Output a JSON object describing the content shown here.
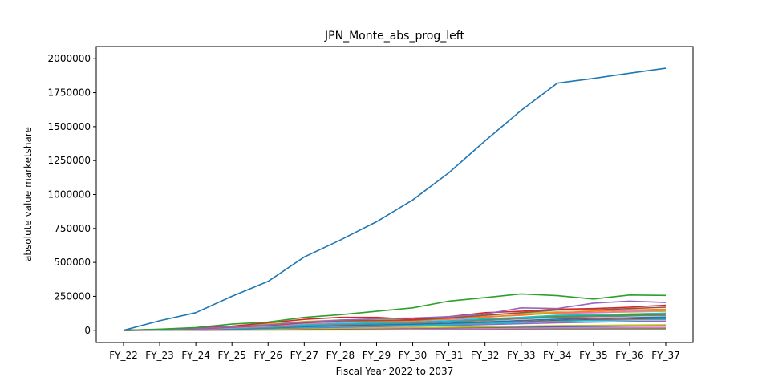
{
  "chart_data": {
    "type": "line",
    "title": "JPN_Monte_abs_prog_left",
    "xlabel": "Fiscal Year 2022 to 2037",
    "ylabel": "absolute value marketshare",
    "categories": [
      "FY_22",
      "FY_23",
      "FY_24",
      "FY_25",
      "FY_26",
      "FY_27",
      "FY_28",
      "FY_29",
      "FY_30",
      "FY_31",
      "FY_32",
      "FY_33",
      "FY_34",
      "FY_35",
      "FY_36",
      "FY_37"
    ],
    "ylim": [
      -90000,
      2090000
    ],
    "yticks": [
      0,
      250000,
      500000,
      750000,
      1000000,
      1250000,
      1500000,
      1750000,
      2000000
    ],
    "ytick_labels": [
      "0",
      "250000",
      "500000",
      "750000",
      "1000000",
      "1250000",
      "1500000",
      "1750000",
      "2000000"
    ],
    "grid": false,
    "series": [
      {
        "color": "#1f77b4",
        "values": [
          0,
          70000,
          130000,
          250000,
          360000,
          540000,
          665000,
          800000,
          960000,
          1160000,
          1395000,
          1620000,
          1820000,
          1855000,
          1893000,
          1930000
        ]
      },
      {
        "color": "#2ca02c",
        "values": [
          0,
          8000,
          20000,
          45000,
          60000,
          95000,
          115000,
          140000,
          165000,
          215000,
          240000,
          268000,
          255000,
          230000,
          260000,
          257000
        ]
      },
      {
        "color": "#9467bd",
        "values": [
          0,
          5000,
          12000,
          25000,
          40000,
          60000,
          75000,
          85000,
          90000,
          100000,
          120000,
          165000,
          160000,
          200000,
          215000,
          205000
        ]
      },
      {
        "color": "#d62728",
        "values": [
          0,
          6000,
          15000,
          30000,
          55000,
          80000,
          95000,
          95000,
          80000,
          100000,
          130000,
          140000,
          155000,
          160000,
          170000,
          185000
        ]
      },
      {
        "color": "#8c564b",
        "values": [
          0,
          4000,
          10000,
          22000,
          35000,
          55000,
          70000,
          72000,
          75000,
          90000,
          110000,
          130000,
          150000,
          150000,
          160000,
          170000
        ]
      },
      {
        "color": "#ff7f0e",
        "values": [
          0,
          5000,
          12000,
          24000,
          38000,
          60000,
          70000,
          68000,
          70000,
          85000,
          100000,
          110000,
          130000,
          140000,
          150000,
          155000
        ]
      },
      {
        "color": "#e377c2",
        "values": [
          0,
          3000,
          8000,
          18000,
          30000,
          48000,
          60000,
          65000,
          70000,
          80000,
          95000,
          115000,
          125000,
          130000,
          140000,
          148000
        ]
      },
      {
        "color": "#bcbd22",
        "values": [
          0,
          7000,
          18000,
          30000,
          45000,
          65000,
          75000,
          75000,
          80000,
          95000,
          110000,
          125000,
          135000,
          130000,
          135000,
          140000
        ]
      },
      {
        "color": "#17becf",
        "values": [
          0,
          3000,
          8000,
          15000,
          25000,
          40000,
          50000,
          55000,
          60000,
          70000,
          85000,
          95000,
          110000,
          115000,
          120000,
          125000
        ]
      },
      {
        "color": "#7f7f7f",
        "values": [
          0,
          2500,
          6000,
          12000,
          20000,
          32000,
          42000,
          48000,
          52000,
          62000,
          72000,
          85000,
          95000,
          100000,
          105000,
          110000
        ]
      },
      {
        "color": "#2ca02c",
        "values": [
          0,
          4000,
          9000,
          16000,
          26000,
          38000,
          48000,
          52000,
          58000,
          68000,
          80000,
          90000,
          100000,
          105000,
          112000,
          118000
        ]
      },
      {
        "color": "#1f77b4",
        "values": [
          0,
          2000,
          5000,
          10000,
          17000,
          27000,
          35000,
          40000,
          45000,
          52000,
          62000,
          72000,
          82000,
          88000,
          92000,
          98000
        ]
      },
      {
        "color": "#ff7f0e",
        "values": [
          0,
          3000,
          7000,
          14000,
          22000,
          34000,
          45000,
          50000,
          56000,
          66000,
          78000,
          92000,
          104000,
          112000,
          120000,
          126000
        ]
      },
      {
        "color": "#17becf",
        "values": [
          0,
          1500,
          4000,
          8000,
          14000,
          22000,
          28000,
          32000,
          36000,
          42000,
          50000,
          58000,
          66000,
          72000,
          76000,
          80000
        ]
      },
      {
        "color": "#9467bd",
        "values": [
          0,
          1500,
          3500,
          7000,
          12000,
          18000,
          23000,
          27000,
          30000,
          35000,
          42000,
          48000,
          55000,
          60000,
          64000,
          68000
        ]
      },
      {
        "color": "#d62728",
        "values": [
          0,
          2000,
          4500,
          9000,
          15000,
          23000,
          30000,
          34000,
          38000,
          45000,
          54000,
          62000,
          72000,
          78000,
          82000,
          88000
        ]
      },
      {
        "color": "#bcbd22",
        "values": [
          0,
          1000,
          2500,
          5000,
          8000,
          12000,
          15000,
          17000,
          19000,
          22000,
          26000,
          30000,
          34000,
          36000,
          38000,
          40000
        ]
      },
      {
        "color": "#8c564b",
        "values": [
          0,
          1000,
          2000,
          4000,
          7000,
          10000,
          13000,
          15000,
          17000,
          20000,
          24000,
          28000,
          32000,
          34000,
          36000,
          38000
        ]
      },
      {
        "color": "#1f77b4",
        "values": [
          0,
          800,
          1800,
          3500,
          6000,
          9000,
          11000,
          13000,
          15000,
          18000,
          21000,
          24000,
          27000,
          29000,
          31000,
          33000
        ]
      },
      {
        "color": "#e377c2",
        "values": [
          0,
          500,
          1200,
          2500,
          4000,
          6000,
          8000,
          9000,
          10000,
          12000,
          14000,
          16000,
          18000,
          19000,
          20000,
          21000
        ]
      },
      {
        "color": "#7f7f7f",
        "values": [
          0,
          300,
          800,
          1500,
          2500,
          3500,
          4500,
          5500,
          6500,
          7500,
          8500,
          9500,
          10500,
          11000,
          11500,
          12000
        ]
      },
      {
        "color": "#bcbd22",
        "values": [
          0,
          200,
          500,
          1000,
          1500,
          2000,
          2500,
          3000,
          3500,
          4000,
          4500,
          5000,
          5500,
          6000,
          6500,
          7000
        ]
      }
    ]
  }
}
